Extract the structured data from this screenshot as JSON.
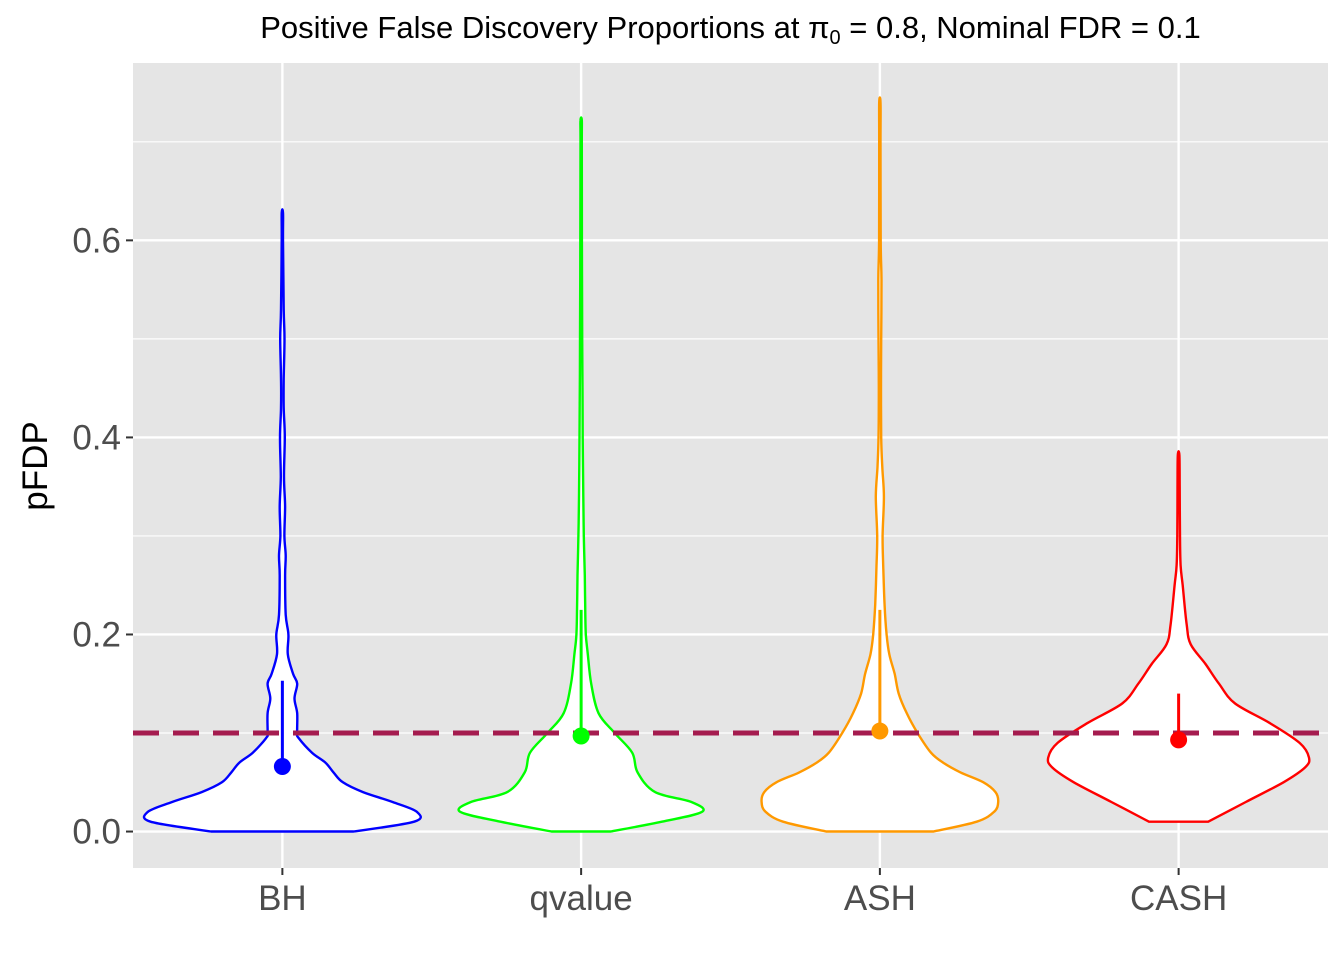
{
  "chart_data": {
    "type": "violin",
    "title_parts": {
      "pre": "Positive False Discovery Proportions at ",
      "symbol": "π",
      "subscript": "0",
      "post": " = 0.8, Nominal FDR = 0.1"
    },
    "xlabel": "",
    "ylabel": "pFDP",
    "ylim": [
      -0.037,
      0.78
    ],
    "yticks": [
      "0.0",
      "0.2",
      "0.4",
      "0.6"
    ],
    "ytick_values": [
      0.0,
      0.2,
      0.4,
      0.6
    ],
    "y_minor_gridlines": [
      0.1,
      0.3,
      0.5,
      0.7
    ],
    "grid": true,
    "legend": "none",
    "reference_line": {
      "y": 0.1,
      "style": "dashed",
      "color": "#A51C4F"
    },
    "categories": [
      "BH",
      "qvalue",
      "ASH",
      "CASH"
    ],
    "series": [
      {
        "category": "BH",
        "color": "#0000FF",
        "min": 0.0,
        "max": 0.628,
        "mean": 0.066,
        "upper": 0.153,
        "profile": [
          [
            0.0,
            0.53
          ],
          [
            0.01,
            0.98
          ],
          [
            0.02,
            1.0
          ],
          [
            0.03,
            0.82
          ],
          [
            0.04,
            0.6
          ],
          [
            0.05,
            0.45
          ],
          [
            0.06,
            0.38
          ],
          [
            0.07,
            0.32
          ],
          [
            0.08,
            0.22
          ],
          [
            0.095,
            0.12
          ],
          [
            0.1,
            0.11
          ],
          [
            0.12,
            0.11
          ],
          [
            0.135,
            0.09
          ],
          [
            0.15,
            0.11
          ],
          [
            0.16,
            0.08
          ],
          [
            0.18,
            0.04
          ],
          [
            0.2,
            0.045
          ],
          [
            0.22,
            0.025
          ],
          [
            0.26,
            0.02
          ],
          [
            0.28,
            0.025
          ],
          [
            0.3,
            0.015
          ],
          [
            0.33,
            0.02
          ],
          [
            0.36,
            0.012
          ],
          [
            0.4,
            0.018
          ],
          [
            0.43,
            0.01
          ],
          [
            0.46,
            0.01
          ],
          [
            0.5,
            0.016
          ],
          [
            0.53,
            0.01
          ],
          [
            0.6,
            0.005
          ],
          [
            0.628,
            0.005
          ]
        ]
      },
      {
        "category": "qvalue",
        "color": "#00FF00",
        "min": 0.0,
        "max": 0.722,
        "mean": 0.097,
        "upper": 0.225,
        "profile": [
          [
            0.0,
            0.22
          ],
          [
            0.01,
            0.6
          ],
          [
            0.02,
            0.9
          ],
          [
            0.03,
            0.82
          ],
          [
            0.04,
            0.55
          ],
          [
            0.06,
            0.42
          ],
          [
            0.08,
            0.38
          ],
          [
            0.1,
            0.25
          ],
          [
            0.12,
            0.13
          ],
          [
            0.15,
            0.075
          ],
          [
            0.18,
            0.05
          ],
          [
            0.2,
            0.035
          ],
          [
            0.23,
            0.03
          ],
          [
            0.26,
            0.027
          ],
          [
            0.3,
            0.02
          ],
          [
            0.34,
            0.016
          ],
          [
            0.4,
            0.012
          ],
          [
            0.45,
            0.01
          ],
          [
            0.5,
            0.008
          ],
          [
            0.6,
            0.006
          ],
          [
            0.7,
            0.005
          ],
          [
            0.722,
            0.005
          ]
        ]
      },
      {
        "category": "ASH",
        "color": "#FF9900",
        "min": 0.0,
        "max": 0.74,
        "mean": 0.102,
        "upper": 0.225,
        "profile": [
          [
            0.0,
            0.4
          ],
          [
            0.01,
            0.72
          ],
          [
            0.02,
            0.85
          ],
          [
            0.03,
            0.88
          ],
          [
            0.04,
            0.86
          ],
          [
            0.05,
            0.77
          ],
          [
            0.06,
            0.6
          ],
          [
            0.07,
            0.47
          ],
          [
            0.08,
            0.38
          ],
          [
            0.1,
            0.28
          ],
          [
            0.12,
            0.2
          ],
          [
            0.14,
            0.14
          ],
          [
            0.16,
            0.11
          ],
          [
            0.18,
            0.07
          ],
          [
            0.2,
            0.05
          ],
          [
            0.23,
            0.035
          ],
          [
            0.27,
            0.025
          ],
          [
            0.3,
            0.02
          ],
          [
            0.34,
            0.03
          ],
          [
            0.37,
            0.018
          ],
          [
            0.4,
            0.01
          ],
          [
            0.45,
            0.008
          ],
          [
            0.5,
            0.01
          ],
          [
            0.56,
            0.012
          ],
          [
            0.6,
            0.006
          ],
          [
            0.7,
            0.005
          ],
          [
            0.74,
            0.005
          ]
        ]
      },
      {
        "category": "CASH",
        "color": "#FF0000",
        "min": 0.01,
        "max": 0.382,
        "mean": 0.093,
        "upper": 0.14,
        "profile": [
          [
            0.01,
            0.22
          ],
          [
            0.03,
            0.5
          ],
          [
            0.05,
            0.78
          ],
          [
            0.065,
            0.94
          ],
          [
            0.075,
            0.97
          ],
          [
            0.09,
            0.9
          ],
          [
            0.11,
            0.68
          ],
          [
            0.13,
            0.42
          ],
          [
            0.15,
            0.3
          ],
          [
            0.17,
            0.2
          ],
          [
            0.19,
            0.09
          ],
          [
            0.21,
            0.06
          ],
          [
            0.25,
            0.03
          ],
          [
            0.27,
            0.015
          ],
          [
            0.3,
            0.01
          ],
          [
            0.35,
            0.008
          ],
          [
            0.382,
            0.006
          ]
        ]
      }
    ]
  }
}
